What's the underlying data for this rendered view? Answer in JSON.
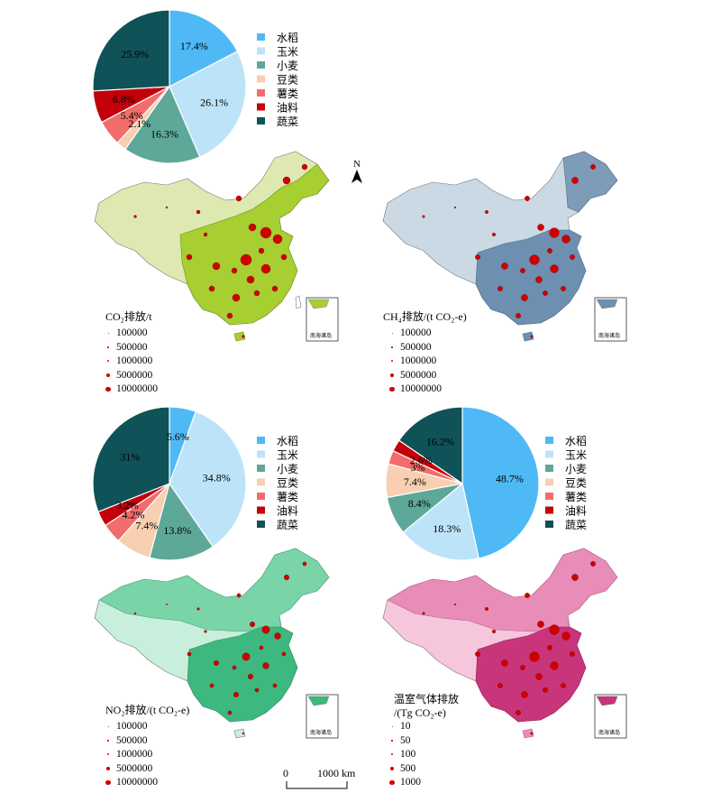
{
  "pie_categories": [
    "水稻",
    "玉米",
    "小麦",
    "豆类",
    "薯类",
    "油料",
    "蔬菜"
  ],
  "colors": {
    "rice": "#4fb9f5",
    "maize": "#bde3f8",
    "wheat": "#5da899",
    "beans": "#f8cfb0",
    "potato": "#f26c6c",
    "oil": "#c4000a",
    "vegetable": "#0f5257",
    "bubble": "#d10000",
    "co2_map": "#b7d94a",
    "ch4_map": "#8ea8c3",
    "no2_map": "#5cc796",
    "ghg_map": "#d95a98"
  },
  "chart_data": [
    {
      "type": "pie",
      "id": "co2-pie",
      "categories": [
        "水稻",
        "玉米",
        "小麦",
        "豆类",
        "薯类",
        "油料",
        "蔬菜"
      ],
      "values": [
        17.4,
        26.1,
        16.3,
        2.1,
        5.4,
        6.8,
        25.9
      ],
      "labels": [
        "17.4%",
        "26.1%",
        "16.3%",
        "2.1%",
        "5.4%",
        "6.8%",
        "25.9%"
      ]
    },
    {
      "type": "pie",
      "id": "no2-pie",
      "categories": [
        "水稻",
        "玉米",
        "小麦",
        "豆类",
        "薯类",
        "油料",
        "蔬菜"
      ],
      "values": [
        5.6,
        34.8,
        13.8,
        7.4,
        4.2,
        3.2,
        31
      ],
      "labels": [
        "5.6%",
        "34.8%",
        "13.8%",
        "7.4%",
        "4.2%",
        "3.2%",
        "31%"
      ]
    },
    {
      "type": "pie",
      "id": "ch4-pie",
      "categories": [
        "水稻",
        "玉米",
        "小麦",
        "豆类",
        "薯类",
        "油料",
        "蔬菜"
      ],
      "values": [
        48.7,
        18.3,
        8.4,
        7.4,
        3,
        2.6,
        16.2
      ],
      "labels": [
        "48.7%",
        "18.3%",
        "8.4%",
        "7.4%",
        "3%",
        "2.6%",
        "16.2%"
      ]
    }
  ],
  "maps": {
    "co2": {
      "legend_title": "CO₂排放/t",
      "sizes": [
        "100000",
        "500000",
        "1000000",
        "5000000",
        "10000000"
      ]
    },
    "ch4": {
      "legend_title": "CH₄排放/(t CO₂-e)",
      "sizes": [
        "100000",
        "500000",
        "1000000",
        "5000000",
        "10000000"
      ]
    },
    "no2": {
      "legend_title": "NO₂排放/(t CO₂-e)",
      "sizes": [
        "100000",
        "500000",
        "1000000",
        "5000000",
        "10000000"
      ]
    },
    "ghg": {
      "legend_title_line1": "温室气体排放",
      "legend_title_line2": "/(Tg CO₂-e)",
      "sizes": [
        "10",
        "50",
        "100",
        "500",
        "1000"
      ]
    }
  },
  "north_label": "N",
  "inset_label": "南海诸岛",
  "scale": {
    "zero": "0",
    "distance": "1000 km"
  }
}
